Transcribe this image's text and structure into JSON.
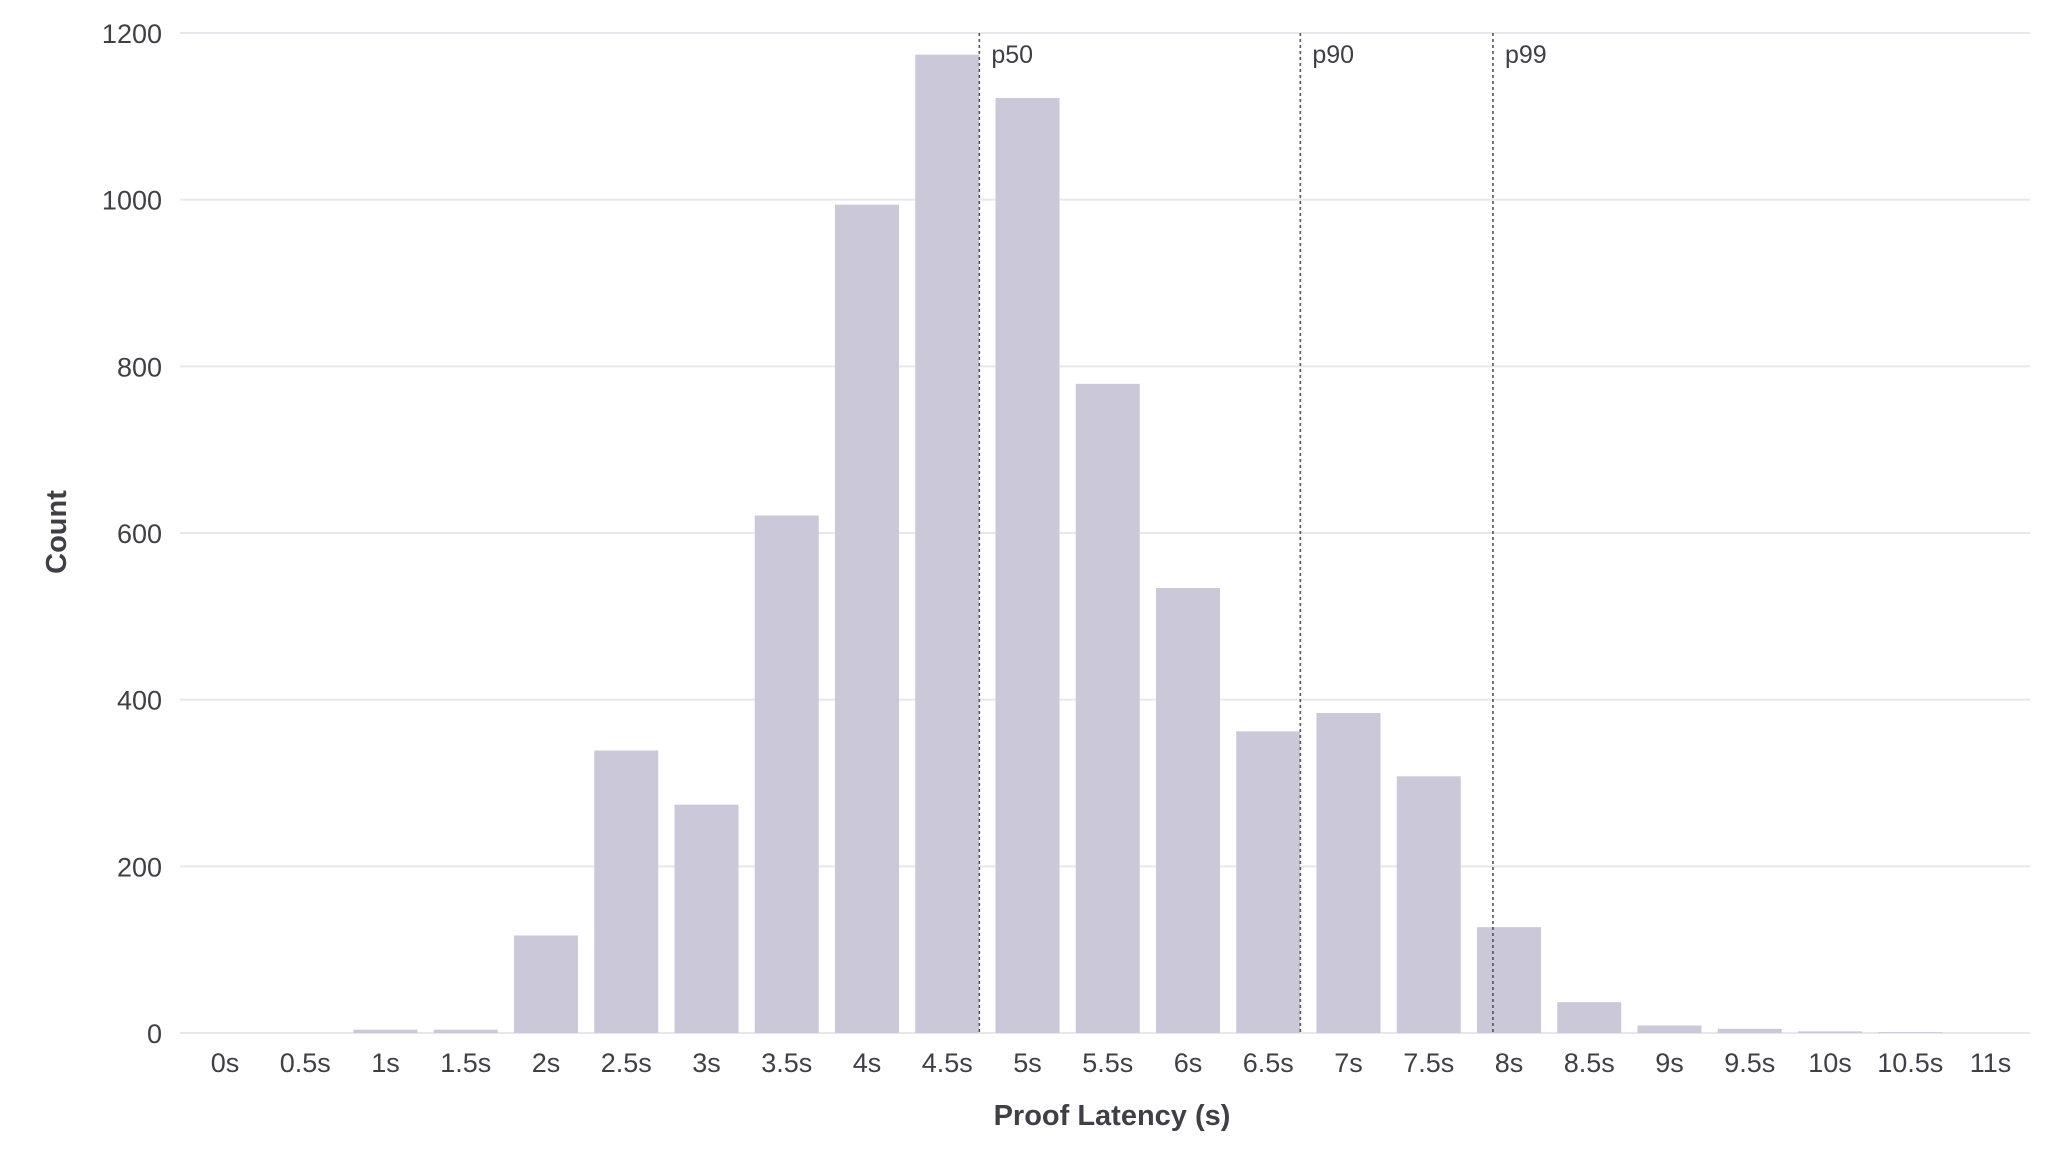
{
  "chart_data": {
    "type": "bar",
    "title": "",
    "xlabel": "Proof Latency (s)",
    "ylabel": "Count",
    "ylim": [
      0,
      1200
    ],
    "yticks": [
      0,
      200,
      400,
      600,
      800,
      1000,
      1200
    ],
    "grid": "horizontal",
    "bar_color": "#cbc8d9",
    "categories": [
      "0s",
      "0.5s",
      "1s",
      "1.5s",
      "2s",
      "2.5s",
      "3s",
      "3.5s",
      "4s",
      "4.5s",
      "5s",
      "5.5s",
      "6s",
      "6.5s",
      "7s",
      "7.5s",
      "8s",
      "8.5s",
      "9s",
      "9.5s",
      "10s",
      "10.5s",
      "11s"
    ],
    "values": [
      0,
      0,
      4,
      4,
      117,
      339,
      274,
      621,
      994,
      1174,
      1122,
      779,
      534,
      362,
      384,
      308,
      127,
      37,
      9,
      5,
      2,
      1,
      0
    ],
    "markers": [
      {
        "label": "p50",
        "value": 4.7
      },
      {
        "label": "p90",
        "value": 6.7
      },
      {
        "label": "p99",
        "value": 7.9
      }
    ]
  }
}
